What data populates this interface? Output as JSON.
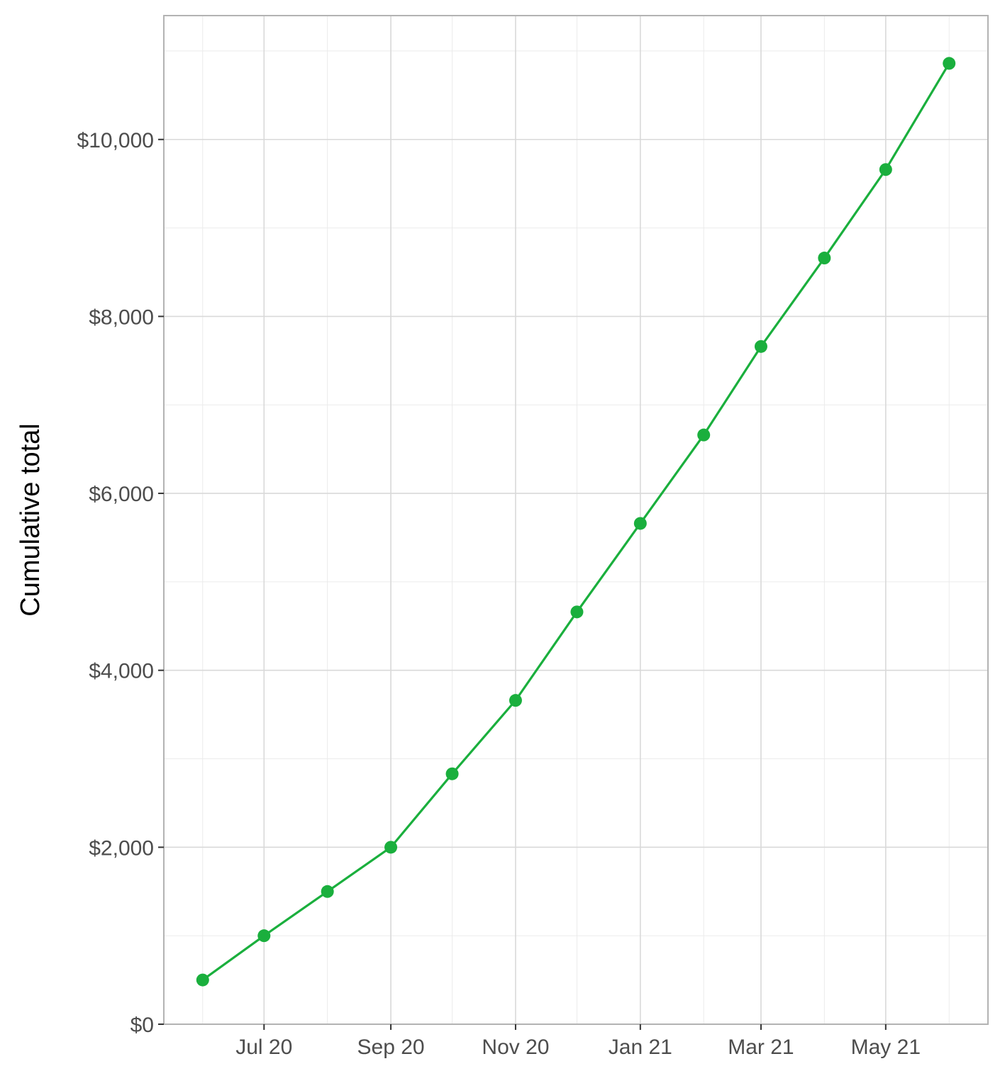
{
  "chart_data": {
    "type": "line",
    "title": "",
    "xlabel": "",
    "ylabel": "Cumulative total",
    "x": [
      "2020-06-01",
      "2020-07-01",
      "2020-08-01",
      "2020-09-01",
      "2020-10-01",
      "2020-11-01",
      "2020-12-01",
      "2021-01-01",
      "2021-02-01",
      "2021-03-01",
      "2021-04-01",
      "2021-05-01",
      "2021-06-01"
    ],
    "series": [
      {
        "values": [
          500,
          1000,
          1500,
          2000,
          2830,
          3660,
          4660,
          5660,
          6660,
          7660,
          8660,
          9660,
          10860
        ]
      }
    ],
    "ylim": [
      0,
      11400
    ],
    "xlim": [
      "2020-05-13",
      "2021-06-20"
    ],
    "yticks": [
      0,
      2000,
      4000,
      6000,
      8000,
      10000
    ],
    "ytick_labels": [
      "$0",
      "$2,000",
      "$4,000",
      "$6,000",
      "$8,000",
      "$10,000"
    ],
    "xticks": [
      "2020-07-01",
      "2020-09-01",
      "2020-11-01",
      "2021-01-01",
      "2021-03-01",
      "2021-05-01"
    ],
    "xtick_labels": [
      "Jul 20",
      "Sep 20",
      "Nov 20",
      "Jan 21",
      "Mar 21",
      "May 21"
    ],
    "grid": true,
    "line_color": "#1aaf3d"
  }
}
